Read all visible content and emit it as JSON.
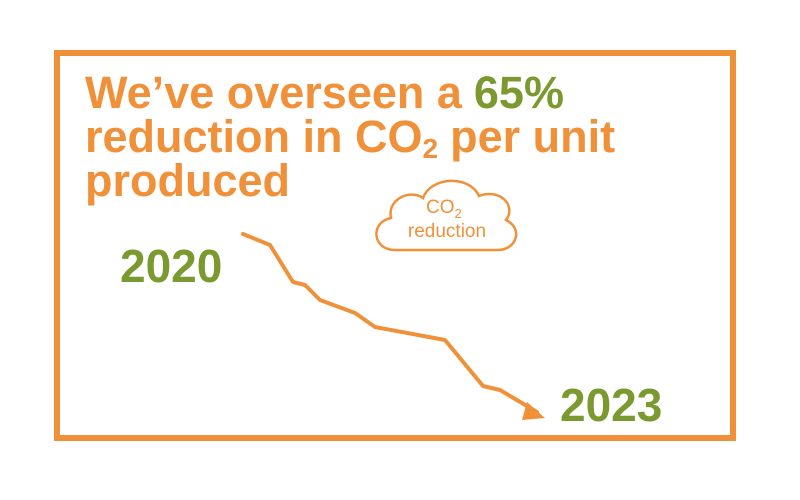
{
  "headline": {
    "lead": "We’ve overseen a",
    "figure": "65%",
    "line2": "reduction in CO",
    "subscript": "2",
    "rest": "per unit",
    "line3": "produced"
  },
  "cloud": {
    "text": "CO",
    "subscript": "2",
    "label": "reduction"
  },
  "start_year": "2020",
  "end_year": "2023"
}
